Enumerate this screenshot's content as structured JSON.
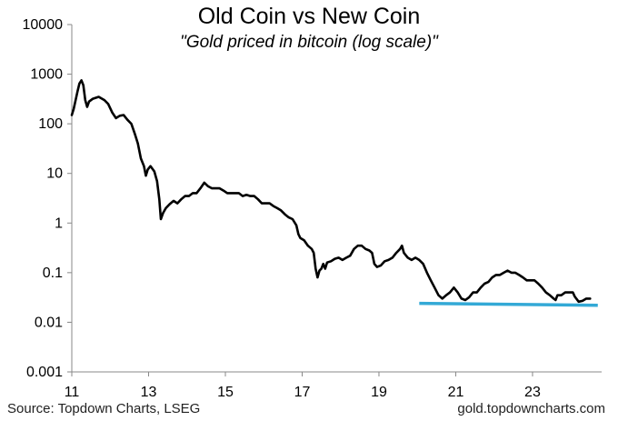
{
  "chart_data": {
    "type": "line",
    "title": "Old Coin vs New Coin",
    "subtitle": "\"Gold priced in bitcoin (log scale)\"",
    "xlabel": "",
    "ylabel": "",
    "y_scale": "log",
    "ylim": [
      0.001,
      10000
    ],
    "xlim": [
      2011,
      2024.8
    ],
    "y_ticks": [
      {
        "value": 10000,
        "label": "10000"
      },
      {
        "value": 1000,
        "label": "1000"
      },
      {
        "value": 100,
        "label": "100"
      },
      {
        "value": 10,
        "label": "10"
      },
      {
        "value": 1,
        "label": "1"
      },
      {
        "value": 0.1,
        "label": "0.1"
      },
      {
        "value": 0.01,
        "label": "0.01"
      },
      {
        "value": 0.001,
        "label": "0.001"
      }
    ],
    "x_ticks": [
      {
        "value": 2011,
        "label": "11"
      },
      {
        "value": 2013,
        "label": "13"
      },
      {
        "value": 2015,
        "label": "15"
      },
      {
        "value": 2017,
        "label": "17"
      },
      {
        "value": 2019,
        "label": "19"
      },
      {
        "value": 2021,
        "label": "21"
      },
      {
        "value": 2023,
        "label": "23"
      }
    ],
    "series": [
      {
        "color": "#000000",
        "points": [
          [
            2011.0,
            150
          ],
          [
            2011.05,
            200
          ],
          [
            2011.1,
            300
          ],
          [
            2011.15,
            450
          ],
          [
            2011.2,
            650
          ],
          [
            2011.25,
            750
          ],
          [
            2011.3,
            600
          ],
          [
            2011.35,
            300
          ],
          [
            2011.4,
            220
          ],
          [
            2011.45,
            280
          ],
          [
            2011.55,
            320
          ],
          [
            2011.7,
            350
          ],
          [
            2011.85,
            300
          ],
          [
            2011.95,
            250
          ],
          [
            2012.05,
            170
          ],
          [
            2012.15,
            130
          ],
          [
            2012.25,
            145
          ],
          [
            2012.35,
            150
          ],
          [
            2012.45,
            120
          ],
          [
            2012.55,
            100
          ],
          [
            2012.65,
            60
          ],
          [
            2012.72,
            40
          ],
          [
            2012.8,
            20
          ],
          [
            2012.88,
            14
          ],
          [
            2012.93,
            9
          ],
          [
            2012.98,
            12
          ],
          [
            2013.05,
            14
          ],
          [
            2013.15,
            11
          ],
          [
            2013.22,
            7
          ],
          [
            2013.28,
            3
          ],
          [
            2013.32,
            1.2
          ],
          [
            2013.38,
            1.6
          ],
          [
            2013.45,
            2
          ],
          [
            2013.55,
            2.4
          ],
          [
            2013.65,
            2.8
          ],
          [
            2013.75,
            2.5
          ],
          [
            2013.85,
            3
          ],
          [
            2013.95,
            3.5
          ],
          [
            2014.05,
            3.5
          ],
          [
            2014.15,
            4
          ],
          [
            2014.25,
            4
          ],
          [
            2014.35,
            5
          ],
          [
            2014.45,
            6.5
          ],
          [
            2014.55,
            5.5
          ],
          [
            2014.65,
            5
          ],
          [
            2014.75,
            5
          ],
          [
            2014.85,
            5
          ],
          [
            2014.95,
            4.5
          ],
          [
            2015.05,
            4
          ],
          [
            2015.15,
            4
          ],
          [
            2015.25,
            4
          ],
          [
            2015.35,
            4
          ],
          [
            2015.45,
            3.5
          ],
          [
            2015.55,
            3.7
          ],
          [
            2015.65,
            3.5
          ],
          [
            2015.75,
            3.5
          ],
          [
            2015.85,
            3
          ],
          [
            2015.95,
            2.5
          ],
          [
            2016.05,
            2.5
          ],
          [
            2016.15,
            2.5
          ],
          [
            2016.25,
            2.2
          ],
          [
            2016.35,
            2
          ],
          [
            2016.45,
            1.8
          ],
          [
            2016.55,
            1.5
          ],
          [
            2016.65,
            1.3
          ],
          [
            2016.75,
            1.2
          ],
          [
            2016.85,
            0.9
          ],
          [
            2016.9,
            0.6
          ],
          [
            2016.95,
            0.5
          ],
          [
            2017.05,
            0.45
          ],
          [
            2017.15,
            0.35
          ],
          [
            2017.25,
            0.3
          ],
          [
            2017.3,
            0.25
          ],
          [
            2017.35,
            0.12
          ],
          [
            2017.4,
            0.08
          ],
          [
            2017.45,
            0.11
          ],
          [
            2017.5,
            0.12
          ],
          [
            2017.55,
            0.15
          ],
          [
            2017.6,
            0.12
          ],
          [
            2017.65,
            0.16
          ],
          [
            2017.75,
            0.17
          ],
          [
            2017.85,
            0.19
          ],
          [
            2017.95,
            0.2
          ],
          [
            2018.05,
            0.18
          ],
          [
            2018.15,
            0.2
          ],
          [
            2018.25,
            0.22
          ],
          [
            2018.35,
            0.3
          ],
          [
            2018.45,
            0.35
          ],
          [
            2018.55,
            0.35
          ],
          [
            2018.65,
            0.3
          ],
          [
            2018.75,
            0.28
          ],
          [
            2018.82,
            0.25
          ],
          [
            2018.88,
            0.15
          ],
          [
            2018.95,
            0.13
          ],
          [
            2019.05,
            0.14
          ],
          [
            2019.15,
            0.17
          ],
          [
            2019.25,
            0.18
          ],
          [
            2019.35,
            0.2
          ],
          [
            2019.45,
            0.25
          ],
          [
            2019.55,
            0.3
          ],
          [
            2019.6,
            0.35
          ],
          [
            2019.65,
            0.25
          ],
          [
            2019.75,
            0.2
          ],
          [
            2019.85,
            0.18
          ],
          [
            2019.95,
            0.2
          ],
          [
            2020.05,
            0.18
          ],
          [
            2020.15,
            0.15
          ],
          [
            2020.25,
            0.1
          ],
          [
            2020.35,
            0.07
          ],
          [
            2020.45,
            0.05
          ],
          [
            2020.55,
            0.035
          ],
          [
            2020.65,
            0.03
          ],
          [
            2020.75,
            0.035
          ],
          [
            2020.85,
            0.04
          ],
          [
            2020.95,
            0.05
          ],
          [
            2021.05,
            0.04
          ],
          [
            2021.15,
            0.03
          ],
          [
            2021.25,
            0.028
          ],
          [
            2021.35,
            0.032
          ],
          [
            2021.45,
            0.04
          ],
          [
            2021.55,
            0.04
          ],
          [
            2021.65,
            0.05
          ],
          [
            2021.75,
            0.06
          ],
          [
            2021.85,
            0.065
          ],
          [
            2021.95,
            0.08
          ],
          [
            2022.05,
            0.09
          ],
          [
            2022.15,
            0.09
          ],
          [
            2022.25,
            0.1
          ],
          [
            2022.35,
            0.11
          ],
          [
            2022.45,
            0.1
          ],
          [
            2022.55,
            0.1
          ],
          [
            2022.65,
            0.09
          ],
          [
            2022.75,
            0.08
          ],
          [
            2022.85,
            0.07
          ],
          [
            2022.95,
            0.07
          ],
          [
            2023.05,
            0.07
          ],
          [
            2023.15,
            0.06
          ],
          [
            2023.25,
            0.05
          ],
          [
            2023.35,
            0.04
          ],
          [
            2023.45,
            0.035
          ],
          [
            2023.55,
            0.03
          ],
          [
            2023.6,
            0.028
          ],
          [
            2023.65,
            0.035
          ],
          [
            2023.75,
            0.035
          ],
          [
            2023.85,
            0.04
          ],
          [
            2023.95,
            0.04
          ],
          [
            2024.05,
            0.04
          ],
          [
            2024.1,
            0.033
          ],
          [
            2024.2,
            0.026
          ],
          [
            2024.3,
            0.027
          ],
          [
            2024.4,
            0.03
          ],
          [
            2024.5,
            0.03
          ]
        ]
      }
    ],
    "trendline": {
      "color": "#33a9d6",
      "points": [
        [
          2020.05,
          0.024
        ],
        [
          2024.7,
          0.022
        ]
      ]
    },
    "source": "Source: Topdown Charts, LSEG",
    "watermark": "gold.topdowncharts.com"
  }
}
